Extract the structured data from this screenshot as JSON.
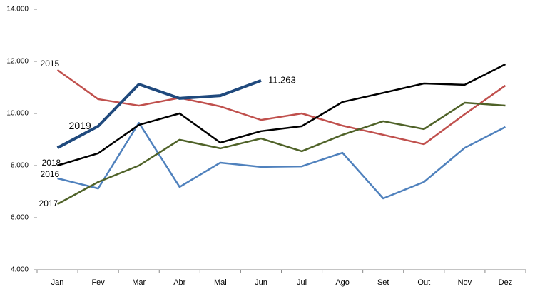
{
  "chart_data": {
    "type": "line",
    "categories": [
      "Jan",
      "Fev",
      "Mar",
      "Abr",
      "Mai",
      "Jun",
      "Jul",
      "Ago",
      "Set",
      "Out",
      "Nov",
      "Dez"
    ],
    "series": [
      {
        "name": "2015",
        "color": "#c0504d",
        "values": [
          11670,
          10550,
          10300,
          10600,
          10270,
          9750,
          10000,
          9530,
          9180,
          8820,
          9970,
          11070
        ]
      },
      {
        "name": "2016",
        "color": "#4f81bd",
        "values": [
          7510,
          7120,
          9640,
          7180,
          8110,
          7950,
          7970,
          8490,
          6740,
          7370,
          8680,
          9480
        ]
      },
      {
        "name": "2017",
        "color": "#4f6228",
        "values": [
          6520,
          7370,
          8000,
          8990,
          8660,
          9040,
          8550,
          9180,
          9700,
          9400,
          10410,
          10300
        ]
      },
      {
        "name": "2018",
        "color": "#000000",
        "values": [
          8000,
          8470,
          9560,
          10000,
          8880,
          9320,
          9510,
          10440,
          10790,
          11150,
          11100,
          11890
        ]
      },
      {
        "name": "2019",
        "color": "#1f497d",
        "values": [
          8680,
          9510,
          11120,
          10580,
          10680,
          11263,
          null,
          null,
          null,
          null,
          null,
          null
        ],
        "value_labels": [
          null,
          null,
          null,
          null,
          null,
          "11.263",
          null,
          null,
          null,
          null,
          null,
          null
        ]
      }
    ],
    "ylim": [
      4000,
      14000
    ],
    "yticks": [
      {
        "value": 4000,
        "label": "4.000"
      },
      {
        "value": 6000,
        "label": "6.000"
      },
      {
        "value": 8000,
        "label": "8.000"
      },
      {
        "value": 10000,
        "label": "10.000"
      },
      {
        "value": 12000,
        "label": "12.000"
      },
      {
        "value": 14000,
        "label": "14.000"
      }
    ]
  }
}
